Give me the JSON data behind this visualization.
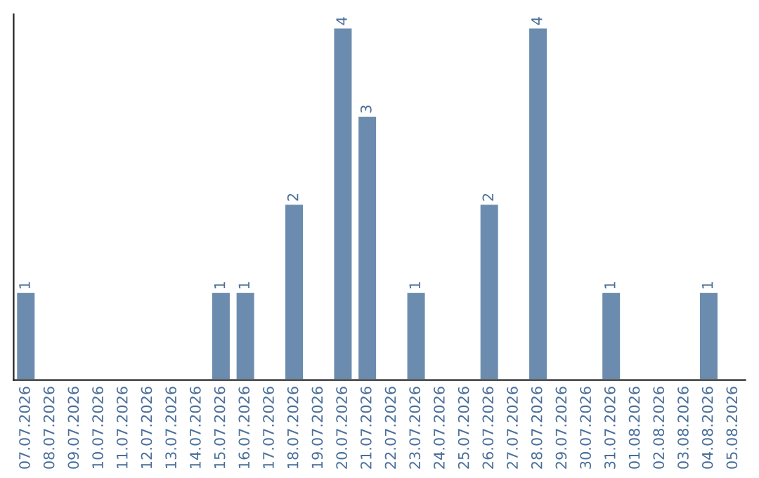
{
  "chart_data": {
    "type": "bar",
    "categories": [
      "07.07.2026",
      "08.07.2026",
      "09.07.2026",
      "10.07.2026",
      "11.07.2026",
      "12.07.2026",
      "13.07.2026",
      "14.07.2026",
      "15.07.2026",
      "16.07.2026",
      "17.07.2026",
      "18.07.2026",
      "19.07.2026",
      "20.07.2026",
      "21.07.2026",
      "22.07.2026",
      "23.07.2026",
      "24.07.2026",
      "25.07.2026",
      "26.07.2026",
      "27.07.2026",
      "28.07.2026",
      "29.07.2026",
      "30.07.2026",
      "31.07.2026",
      "01.08.2026",
      "02.08.2026",
      "03.08.2026",
      "04.08.2026",
      "05.08.2026"
    ],
    "values": [
      1,
      null,
      null,
      null,
      null,
      null,
      null,
      null,
      1,
      1,
      null,
      2,
      null,
      4,
      3,
      null,
      1,
      null,
      null,
      2,
      null,
      4,
      null,
      null,
      1,
      null,
      null,
      null,
      1,
      null
    ],
    "value_labels": [
      "1",
      null,
      null,
      null,
      null,
      null,
      null,
      null,
      "1",
      "1",
      null,
      "2",
      null,
      "4",
      "3",
      null,
      "1",
      null,
      null,
      "2",
      null,
      "4",
      null,
      null,
      "1",
      null,
      null,
      null,
      "1",
      null
    ],
    "color": "#6b8cae",
    "ylim": [
      0,
      4.15
    ],
    "tick_labels": "x",
    "grid": false,
    "legend": false
  }
}
